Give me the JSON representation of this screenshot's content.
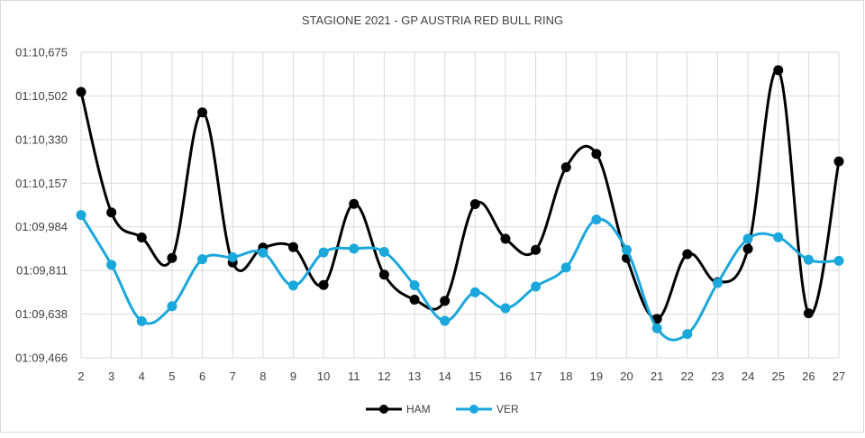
{
  "chart_data": {
    "type": "line",
    "title": "STAGIONE 2021 - GP AUSTRIA RED BULL RING",
    "xlabel": "",
    "ylabel": "",
    "categories": [
      "2",
      "3",
      "4",
      "5",
      "6",
      "7",
      "8",
      "9",
      "10",
      "11",
      "12",
      "13",
      "14",
      "15",
      "16",
      "17",
      "18",
      "19",
      "20",
      "21",
      "22",
      "23",
      "24",
      "25",
      "26",
      "27"
    ],
    "y_tick_labels": [
      "01:09,466",
      "01:09,638",
      "01:09,811",
      "01:09,984",
      "01:10,157",
      "01:10,330",
      "01:10,502",
      "01:10,675"
    ],
    "ylim": [
      69.466,
      70.675
    ],
    "grid": true,
    "legend_position": "bottom",
    "smooth": true,
    "series": [
      {
        "name": "HAM",
        "color": "#000000",
        "values": [
          70.518,
          70.041,
          69.942,
          69.861,
          70.437,
          69.843,
          69.902,
          69.904,
          69.754,
          70.075,
          69.795,
          69.696,
          69.691,
          70.074,
          69.937,
          69.893,
          70.22,
          70.273,
          69.861,
          69.62,
          69.876,
          69.765,
          69.897,
          70.604,
          69.642,
          70.243
        ]
      },
      {
        "name": "VER",
        "color": "#1aa7dc",
        "values": [
          70.031,
          69.834,
          69.611,
          69.67,
          69.856,
          69.864,
          69.882,
          69.752,
          69.883,
          69.898,
          69.885,
          69.753,
          69.612,
          69.725,
          69.662,
          69.748,
          69.823,
          70.013,
          69.893,
          69.583,
          69.56,
          69.762,
          69.937,
          69.943,
          69.854,
          69.85
        ]
      }
    ]
  }
}
